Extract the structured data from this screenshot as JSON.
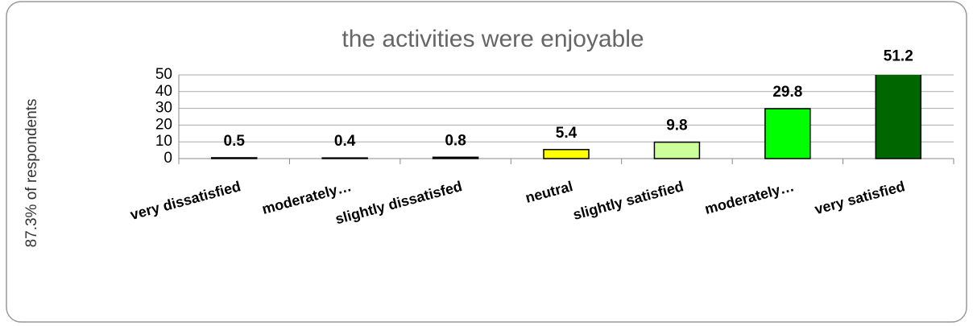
{
  "chart_data": {
    "type": "bar",
    "title": "the activities were enjoyable",
    "y_label": "87.3% of respondents",
    "categories": [
      "very dissatisfied",
      "moderately…",
      "slightly dissatisfed",
      "neutral",
      "slightly satisfied",
      "moderately…",
      "very satisfied"
    ],
    "values": [
      0.5,
      0.4,
      0.8,
      5.4,
      9.8,
      29.8,
      51.2
    ],
    "colors": [
      "#333333",
      "#333333",
      "#333333",
      "#ffff00",
      "#ccff99",
      "#00ff00",
      "#006600"
    ],
    "ylim": [
      0,
      50
    ],
    "yticks": [
      0,
      10,
      20,
      30,
      40,
      50
    ],
    "grid": true
  }
}
